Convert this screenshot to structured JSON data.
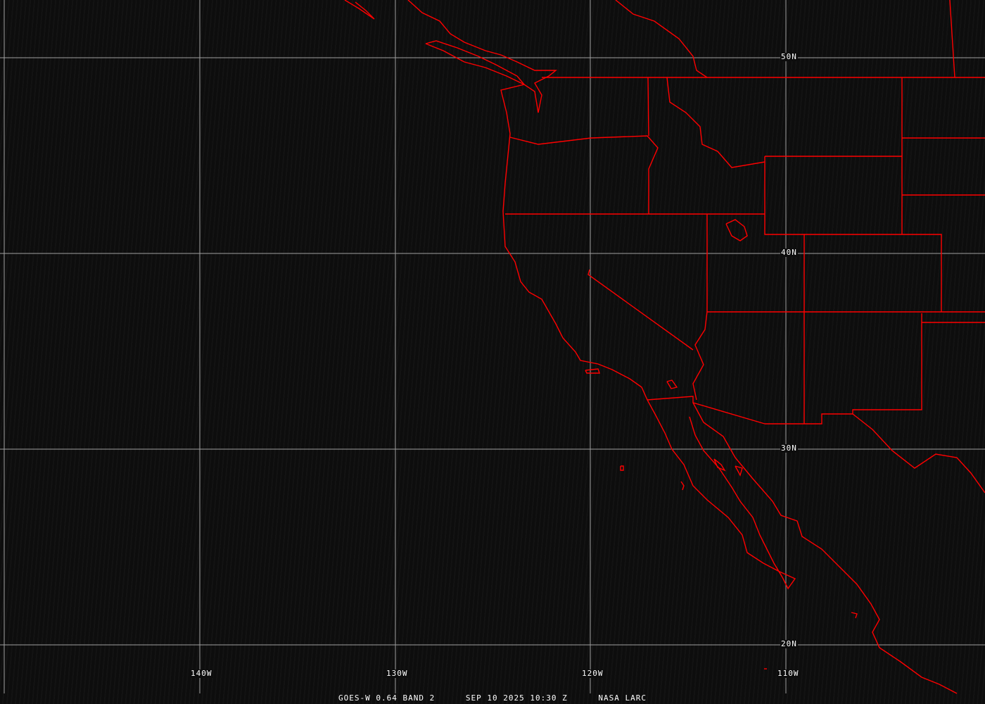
{
  "image": {
    "satellite": "GOES-W 0.64 BAND 2",
    "datetime": "SEP 10 2025 10:30 Z",
    "credit": "NASA LARC"
  },
  "grid": {
    "longitude_labels": [
      "140W",
      "130W",
      "120W",
      "110W"
    ],
    "latitude_labels": [
      "50N",
      "40N",
      "30N",
      "20N"
    ],
    "grid_color": "#a0a0a0"
  },
  "overlay": {
    "boundary_color": "#ff0000",
    "background_color": "#0d0d0d"
  }
}
